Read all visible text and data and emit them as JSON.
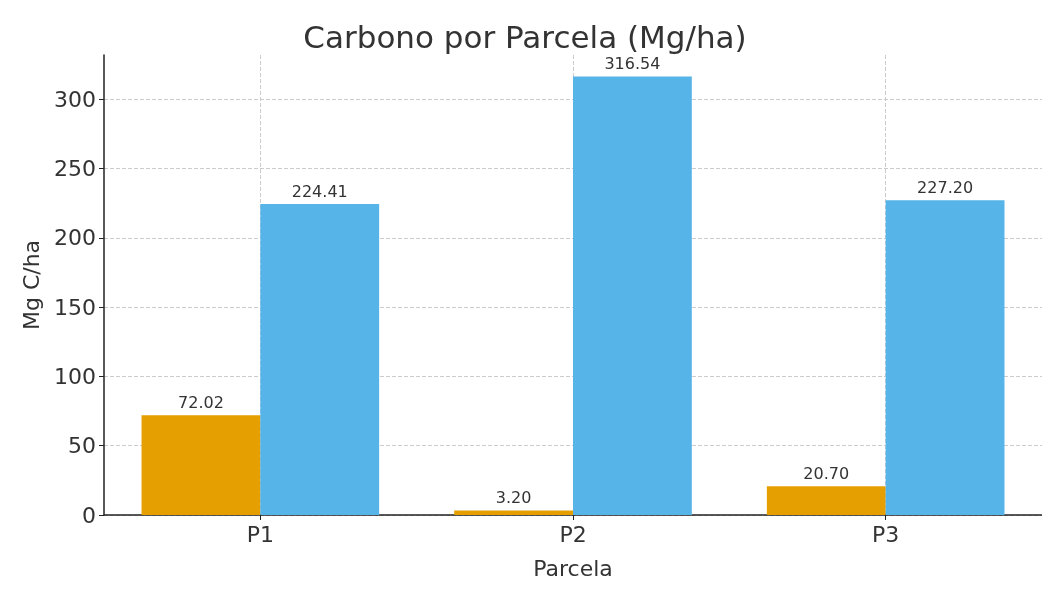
{
  "chart_data": {
    "type": "bar",
    "title": "Carbono por Parcela (Mg/ha)",
    "xlabel": "Parcela",
    "ylabel": "Mg C/ha",
    "categories": [
      "P1",
      "P2",
      "P3"
    ],
    "series": [
      {
        "color": "#e69f00",
        "values": [
          72.02,
          3.2,
          20.7
        ],
        "value_labels": [
          "72.02",
          "3.20",
          "20.70"
        ]
      },
      {
        "color": "#56b4e9",
        "values": [
          224.41,
          316.54,
          227.2
        ],
        "value_labels": [
          "224.41",
          "316.54",
          "227.20"
        ]
      }
    ],
    "ylim": [
      0,
      332
    ],
    "yticks": [
      0,
      50,
      100,
      150,
      200,
      250,
      300
    ],
    "grid": true
  }
}
